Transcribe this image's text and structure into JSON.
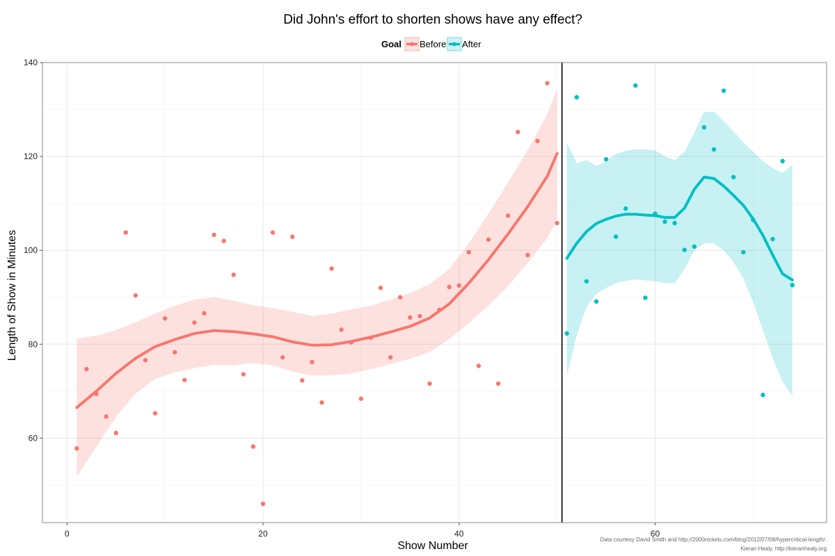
{
  "chart_data": {
    "type": "scatter",
    "title": "Did John's effort to shorten shows have any effect?",
    "xlabel": "Show Number",
    "ylabel": "Length of Show in Minutes",
    "xlim": [
      -2.5,
      77.5
    ],
    "ylim": [
      42,
      140
    ],
    "x_ticks": [
      0,
      20,
      40,
      60
    ],
    "y_ticks": [
      60,
      80,
      100,
      120,
      140
    ],
    "grid": true,
    "vline_x": 50.5,
    "legend": {
      "title": "Goal",
      "position": "top",
      "entries": [
        "Before",
        "After"
      ]
    },
    "series": [
      {
        "name": "Before",
        "color": "#f8766d",
        "points": [
          [
            1,
            57.8
          ],
          [
            2,
            74.7
          ],
          [
            3,
            69.4
          ],
          [
            4,
            64.6
          ],
          [
            5,
            61.1
          ],
          [
            6,
            103.8
          ],
          [
            7,
            90.4
          ],
          [
            8,
            76.6
          ],
          [
            9,
            65.3
          ],
          [
            10,
            85.5
          ],
          [
            11,
            78.3
          ],
          [
            12,
            72.4
          ],
          [
            13,
            84.6
          ],
          [
            14,
            86.6
          ],
          [
            15,
            103.3
          ],
          [
            16,
            102.0
          ],
          [
            17,
            94.8
          ],
          [
            18,
            73.6
          ],
          [
            19,
            58.2
          ],
          [
            20,
            46.0
          ],
          [
            21,
            103.8
          ],
          [
            22,
            77.2
          ],
          [
            23,
            102.9
          ],
          [
            24,
            72.3
          ],
          [
            25,
            76.2
          ],
          [
            26,
            67.6
          ],
          [
            27,
            96.1
          ],
          [
            28,
            83.1
          ],
          [
            29,
            80.4
          ],
          [
            30,
            68.4
          ],
          [
            31,
            81.4
          ],
          [
            32,
            92.0
          ],
          [
            33,
            77.2
          ],
          [
            34,
            90.0
          ],
          [
            35,
            85.7
          ],
          [
            36,
            86.0
          ],
          [
            37,
            71.6
          ],
          [
            38,
            87.3
          ],
          [
            39,
            92.2
          ],
          [
            40,
            92.5
          ],
          [
            41,
            99.6
          ],
          [
            42,
            75.4
          ],
          [
            43,
            102.3
          ],
          [
            44,
            71.6
          ],
          [
            45,
            107.4
          ],
          [
            46,
            125.2
          ],
          [
            47,
            99.0
          ],
          [
            48,
            123.3
          ],
          [
            49,
            135.6
          ],
          [
            50,
            105.8
          ]
        ],
        "smooth": [
          [
            1,
            66.5
          ],
          [
            3,
            70.0
          ],
          [
            5,
            73.8
          ],
          [
            7,
            77.0
          ],
          [
            9,
            79.5
          ],
          [
            11,
            81.0
          ],
          [
            13,
            82.3
          ],
          [
            15,
            82.9
          ],
          [
            17,
            82.7
          ],
          [
            19,
            82.2
          ],
          [
            21,
            81.6
          ],
          [
            23,
            80.5
          ],
          [
            25,
            79.8
          ],
          [
            27,
            79.9
          ],
          [
            29,
            80.6
          ],
          [
            31,
            81.5
          ],
          [
            33,
            82.6
          ],
          [
            35,
            83.8
          ],
          [
            37,
            85.6
          ],
          [
            39,
            88.6
          ],
          [
            41,
            93.0
          ],
          [
            43,
            98.0
          ],
          [
            45,
            103.5
          ],
          [
            47,
            109.3
          ],
          [
            49,
            115.8
          ],
          [
            50,
            120.6
          ]
        ],
        "band_upper": [
          [
            1,
            81.2
          ],
          [
            3,
            81.8
          ],
          [
            5,
            83.0
          ],
          [
            7,
            84.7
          ],
          [
            9,
            86.5
          ],
          [
            11,
            88.2
          ],
          [
            13,
            89.5
          ],
          [
            15,
            90.0
          ],
          [
            17,
            89.3
          ],
          [
            19,
            88.3
          ],
          [
            21,
            87.7
          ],
          [
            23,
            86.9
          ],
          [
            25,
            86.0
          ],
          [
            27,
            86.5
          ],
          [
            29,
            87.4
          ],
          [
            31,
            88.2
          ],
          [
            33,
            89.5
          ],
          [
            35,
            90.9
          ],
          [
            37,
            92.8
          ],
          [
            39,
            96.0
          ],
          [
            41,
            101.5
          ],
          [
            43,
            107.8
          ],
          [
            45,
            114.5
          ],
          [
            47,
            121.3
          ],
          [
            49,
            129.0
          ],
          [
            50,
            134.5
          ]
        ],
        "band_lower": [
          [
            1,
            51.8
          ],
          [
            3,
            58.2
          ],
          [
            5,
            64.5
          ],
          [
            7,
            69.5
          ],
          [
            9,
            72.6
          ],
          [
            11,
            74.0
          ],
          [
            13,
            74.9
          ],
          [
            15,
            75.6
          ],
          [
            17,
            75.5
          ],
          [
            19,
            76.0
          ],
          [
            21,
            75.5
          ],
          [
            23,
            74.2
          ],
          [
            25,
            73.3
          ],
          [
            27,
            73.4
          ],
          [
            29,
            73.8
          ],
          [
            31,
            74.7
          ],
          [
            33,
            75.8
          ],
          [
            35,
            76.9
          ],
          [
            37,
            78.3
          ],
          [
            39,
            81.1
          ],
          [
            41,
            84.5
          ],
          [
            43,
            88.2
          ],
          [
            45,
            92.4
          ],
          [
            47,
            97.3
          ],
          [
            49,
            102.6
          ],
          [
            50,
            106.5
          ]
        ]
      },
      {
        "name": "After",
        "color": "#00bfc4",
        "points": [
          [
            51,
            82.3
          ],
          [
            52,
            132.6
          ],
          [
            53,
            93.4
          ],
          [
            54,
            89.1
          ],
          [
            55,
            119.4
          ],
          [
            56,
            102.9
          ],
          [
            57,
            108.9
          ],
          [
            58,
            135.1
          ],
          [
            59,
            89.9
          ],
          [
            60,
            107.8
          ],
          [
            61,
            106.1
          ],
          [
            62,
            105.8
          ],
          [
            63,
            100.1
          ],
          [
            64,
            100.8
          ],
          [
            65,
            126.2
          ],
          [
            66,
            121.5
          ],
          [
            67,
            134.0
          ],
          [
            68,
            115.6
          ],
          [
            69,
            99.6
          ],
          [
            70,
            106.5
          ],
          [
            71,
            69.2
          ],
          [
            72,
            102.4
          ],
          [
            73,
            119.0
          ],
          [
            74,
            92.6
          ]
        ],
        "smooth": [
          [
            51,
            98.3
          ],
          [
            52,
            101.5
          ],
          [
            53,
            104.0
          ],
          [
            54,
            105.7
          ],
          [
            55,
            106.6
          ],
          [
            56,
            107.3
          ],
          [
            57,
            107.7
          ],
          [
            58,
            107.7
          ],
          [
            59,
            107.5
          ],
          [
            60,
            107.4
          ],
          [
            61,
            107.0
          ],
          [
            62,
            107.0
          ],
          [
            63,
            109.0
          ],
          [
            64,
            113.0
          ],
          [
            65,
            115.6
          ],
          [
            66,
            115.3
          ],
          [
            67,
            113.7
          ],
          [
            68,
            111.7
          ],
          [
            69,
            109.6
          ],
          [
            70,
            106.7
          ],
          [
            71,
            103.2
          ],
          [
            72,
            99.0
          ],
          [
            73,
            95.0
          ],
          [
            74,
            93.7
          ]
        ],
        "band_upper": [
          [
            51,
            123.0
          ],
          [
            52,
            118.5
          ],
          [
            53,
            119.2
          ],
          [
            54,
            118.0
          ],
          [
            55,
            119.0
          ],
          [
            56,
            120.5
          ],
          [
            57,
            121.2
          ],
          [
            58,
            121.5
          ],
          [
            59,
            121.5
          ],
          [
            60,
            121.3
          ],
          [
            61,
            120.0
          ],
          [
            62,
            119.2
          ],
          [
            63,
            121.0
          ],
          [
            64,
            125.0
          ],
          [
            65,
            129.5
          ],
          [
            66,
            129.5
          ],
          [
            67,
            127.5
          ],
          [
            68,
            125.3
          ],
          [
            69,
            123.0
          ],
          [
            70,
            121.0
          ],
          [
            71,
            119.0
          ],
          [
            72,
            117.5
          ],
          [
            73,
            116.5
          ],
          [
            74,
            118.2
          ]
        ],
        "band_lower": [
          [
            51,
            73.3
          ],
          [
            52,
            82.0
          ],
          [
            53,
            88.0
          ],
          [
            54,
            90.7
          ],
          [
            55,
            92.0
          ],
          [
            56,
            93.0
          ],
          [
            57,
            93.5
          ],
          [
            58,
            93.8
          ],
          [
            59,
            93.6
          ],
          [
            60,
            93.4
          ],
          [
            61,
            93.0
          ],
          [
            62,
            93.0
          ],
          [
            63,
            96.0
          ],
          [
            64,
            100.0
          ],
          [
            65,
            101.5
          ],
          [
            66,
            101.5
          ],
          [
            67,
            100.0
          ],
          [
            68,
            97.5
          ],
          [
            69,
            94.0
          ],
          [
            70,
            89.0
          ],
          [
            71,
            83.0
          ],
          [
            72,
            77.0
          ],
          [
            73,
            72.0
          ],
          [
            74,
            69.0
          ]
        ]
      }
    ]
  },
  "credits": {
    "line1": "Data courtesy David Smith and http://2000nickels.com/blog/2012/07/08/hypercritical-length/.",
    "line2": "Kieran Healy, http://kieranhealy.org"
  }
}
